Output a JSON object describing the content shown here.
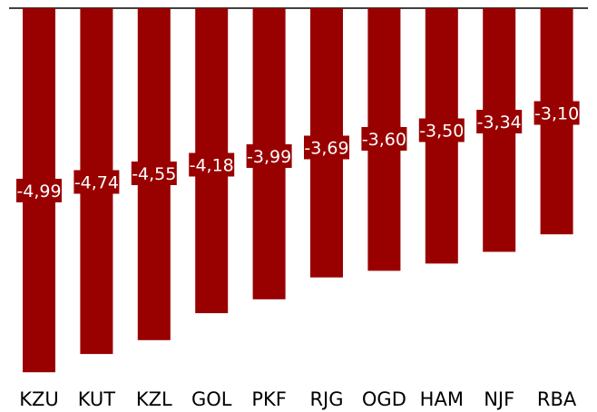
{
  "chart_data": {
    "type": "bar",
    "categories": [
      "KZU",
      "KUT",
      "KZL",
      "GOL",
      "PKF",
      "RJG",
      "OGD",
      "HAM",
      "NJF",
      "RBA"
    ],
    "values": [
      -4.99,
      -4.74,
      -4.55,
      -4.18,
      -3.99,
      -3.69,
      -3.6,
      -3.5,
      -3.34,
      -3.1
    ],
    "value_labels": [
      "-4,99",
      "-4,74",
      "-4,55",
      "-4,18",
      "-3,99",
      "-3,69",
      "-3,60",
      "-3,50",
      "-3,34",
      "-3,10"
    ],
    "title": "",
    "xlabel": "",
    "ylabel": "",
    "ylim": [
      -5.0,
      0
    ],
    "grid": false,
    "legend": "none",
    "colors": {
      "bar": "#990000",
      "label_text": "#ffffff",
      "axis_text": "#000000",
      "baseline": "#000000"
    }
  }
}
